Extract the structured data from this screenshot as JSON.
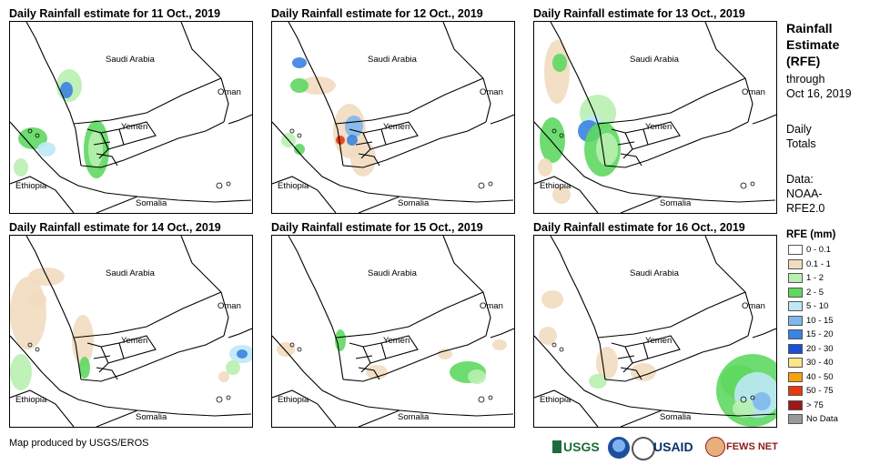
{
  "panels": [
    {
      "title": "Daily Rainfall estimate for 11 Oct., 2019"
    },
    {
      "title": "Daily Rainfall estimate for 12 Oct., 2019"
    },
    {
      "title": "Daily Rainfall estimate for 13 Oct., 2019"
    },
    {
      "title": "Daily Rainfall estimate for 14 Oct., 2019"
    },
    {
      "title": "Daily Rainfall estimate for 15 Oct., 2019"
    },
    {
      "title": "Daily Rainfall estimate for 16 Oct., 2019"
    }
  ],
  "map_labels": {
    "saudi": "Saudi Arabia",
    "oman": "Oman",
    "yemen": "Yemen",
    "ethiopia": "Ethiopia",
    "somalia": "Somalia"
  },
  "legend": {
    "title_line1": "Rainfall",
    "title_line2": "Estimate",
    "title_line3": "(RFE)",
    "through": "through",
    "date": "Oct 16, 2019",
    "daily1": "Daily",
    "daily2": "Totals",
    "data1": "Data:",
    "data2": "NOAA-",
    "data3": "RFE2.0",
    "rfe_heading": "RFE (mm)",
    "items": [
      {
        "label": "0 - 0.1",
        "color": "#ffffff"
      },
      {
        "label": "0.1 - 1",
        "color": "#f1dcc0"
      },
      {
        "label": "1 - 2",
        "color": "#b8f0b0"
      },
      {
        "label": "2 - 5",
        "color": "#5ed860"
      },
      {
        "label": "5 - 10",
        "color": "#bfe8f7"
      },
      {
        "label": "10 - 15",
        "color": "#7fb7ec"
      },
      {
        "label": "15 - 20",
        "color": "#3b83e0"
      },
      {
        "label": "20 - 30",
        "color": "#1a4fd6"
      },
      {
        "label": "30 - 40",
        "color": "#fde68a"
      },
      {
        "label": "40 - 50",
        "color": "#f5a20c"
      },
      {
        "label": "50 - 75",
        "color": "#e8380e"
      },
      {
        "label": "> 75",
        "color": "#a01818"
      },
      {
        "label": "No Data",
        "color": "#9a9a9a"
      }
    ]
  },
  "footer": {
    "credit": "Map produced by USGS/EROS"
  },
  "logos": {
    "usgs": "USGS",
    "usaid": "USAID",
    "fews": "FEWS NET"
  }
}
